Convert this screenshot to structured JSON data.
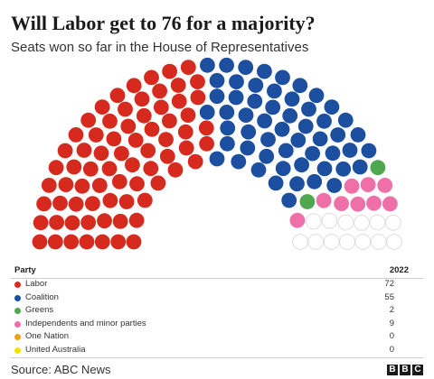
{
  "title": "Will Labor get to 76 for a majority?",
  "subtitle": "Seats won so far in the House of Representatives",
  "table": {
    "party_header": "Party",
    "year_header": "2022",
    "rows": [
      {
        "party": "Labor",
        "seats": "72",
        "color": "#d62a1e"
      },
      {
        "party": "Coalition",
        "seats": "55",
        "color": "#1c4fa0"
      },
      {
        "party": "Greens",
        "seats": "2",
        "color": "#4fa74f"
      },
      {
        "party": "Independents and minor parties",
        "seats": "9",
        "color": "#ef6fa8"
      },
      {
        "party": "One Nation",
        "seats": "0",
        "color": "#f0a020"
      },
      {
        "party": "United Australia",
        "seats": "0",
        "color": "#f2e400"
      }
    ]
  },
  "source": "Source: ABC News",
  "logo": [
    "B",
    "B",
    "C"
  ],
  "chart_data": {
    "type": "hemicycle",
    "total_seats": 151,
    "majority": 76,
    "series": [
      {
        "name": "Labor",
        "values": [
          72
        ],
        "color": "#d62a1e"
      },
      {
        "name": "Coalition",
        "values": [
          55
        ],
        "color": "#1c4fa0"
      },
      {
        "name": "Greens",
        "values": [
          2
        ],
        "color": "#4fa74f"
      },
      {
        "name": "Independents and minor parties",
        "values": [
          9
        ],
        "color": "#ef6fa8"
      },
      {
        "name": "One Nation",
        "values": [
          0
        ],
        "color": "#f0a020"
      },
      {
        "name": "United Australia",
        "values": [
          0
        ],
        "color": "#f2e400"
      }
    ],
    "undeclared_color": "#ffffff",
    "undeclared_stroke": "#dddddd"
  }
}
